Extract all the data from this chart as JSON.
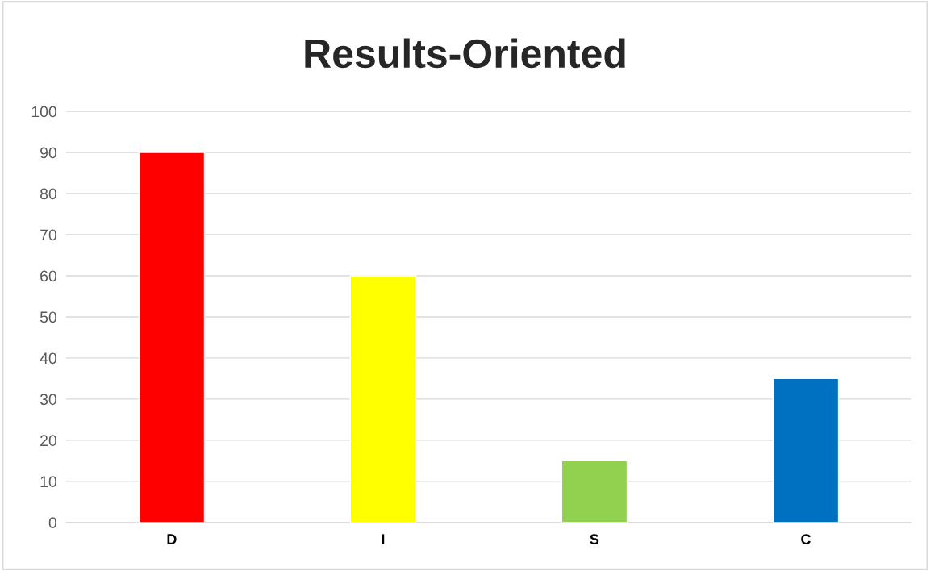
{
  "chart_data": {
    "type": "bar",
    "title": "Results-Oriented",
    "categories": [
      "D",
      "I",
      "S",
      "C"
    ],
    "values": [
      90,
      60,
      15,
      35
    ],
    "colors": [
      "#ff0000",
      "#ffff00",
      "#92d050",
      "#0070c0"
    ],
    "ylim": [
      0,
      100
    ],
    "yticks": [
      0,
      10,
      20,
      30,
      40,
      50,
      60,
      70,
      80,
      90,
      100
    ],
    "grid": "y",
    "legend": false
  }
}
